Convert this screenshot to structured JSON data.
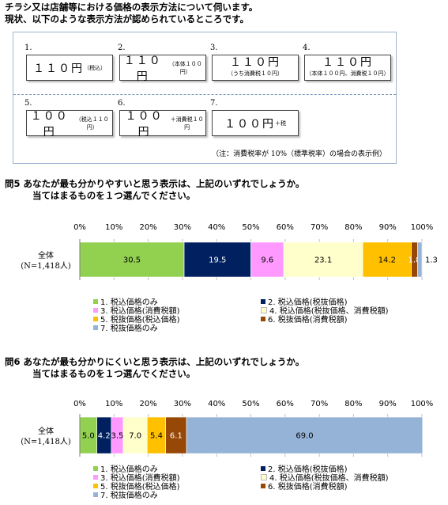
{
  "intro": {
    "line1": "チラシ又は店舗等における価格の表示方法について伺います。",
    "line2": "現状、以下のような表示方法が認められているところです。"
  },
  "options": [
    {
      "num": "1.",
      "price": "１１０円",
      "small": "（税込）"
    },
    {
      "num": "2.",
      "price": "１１０円",
      "small": "（本体１００円）"
    },
    {
      "num": "3.",
      "price": "１１０円",
      "small": "（うち消費税１０円）"
    },
    {
      "num": "4.",
      "price": "１１０円",
      "small": "（本体１００円、消費税１０円）"
    },
    {
      "num": "5.",
      "price": "１００円",
      "small": "（税込１１０円）"
    },
    {
      "num": "6.",
      "price": "１００円",
      "small": "＋消費税１０円"
    },
    {
      "num": "7.",
      "price": "１００円",
      "small": "＋税"
    }
  ],
  "note": "（注：消費税率が 10%（標準税率）の場合の表示例）",
  "questions": [
    {
      "title1": "問5 あなたが最も分かりやすいと思う表示は、上記のいずれでしょうか。",
      "title2": "当てはまるものを１つ選んでください。"
    },
    {
      "title1": "問6 あなたが最も分かりにくいと思う表示は、上記のいずれでしょうか。",
      "title2": "当てはまるものを１つ選んでください。"
    }
  ],
  "chart_data": [
    {
      "type": "bar",
      "orientation": "horizontal-stacked",
      "category": "全体",
      "category_sub": "(N=1,418人)",
      "xlim": [
        0,
        100
      ],
      "ticks": [
        "0%",
        "10%",
        "20%",
        "30%",
        "40%",
        "50%",
        "60%",
        "70%",
        "80%",
        "90%",
        "100%"
      ],
      "legend_placement": "bottom",
      "series": [
        {
          "name": "1. 税込価格のみ",
          "value": 30.5,
          "label": "30.5",
          "color": "#92d050",
          "text_color": "#000000"
        },
        {
          "name": "2. 税込価格(税抜価格)",
          "value": 19.5,
          "label": "19.5",
          "color": "#002060",
          "text_color": "#ffffff"
        },
        {
          "name": "3. 税込価格(消費税額)",
          "value": 9.6,
          "label": "9.6",
          "color": "#ff99ff",
          "text_color": "#000000"
        },
        {
          "name": "4. 税込価格(税抜価格、消費税額)",
          "value": 23.1,
          "label": "23.1",
          "color": "#ffffcc",
          "text_color": "#000000"
        },
        {
          "name": "5. 税抜価格(税込価格)",
          "value": 14.2,
          "label": "14.2",
          "color": "#ffc000",
          "text_color": "#000000"
        },
        {
          "name": "6. 税抜価格(消費税額)",
          "value": 1.8,
          "label": "1.8",
          "color": "#974706",
          "text_color": "#ffffff"
        },
        {
          "name": "7. 税抜価格のみ",
          "value": 1.3,
          "label": "1.3",
          "color": "#95b3d7",
          "text_color": "#000000"
        }
      ]
    },
    {
      "type": "bar",
      "orientation": "horizontal-stacked",
      "category": "全体",
      "category_sub": "(N=1,418人)",
      "xlim": [
        0,
        100
      ],
      "ticks": [
        "0%",
        "10%",
        "20%",
        "30%",
        "40%",
        "50%",
        "60%",
        "70%",
        "80%",
        "90%",
        "100%"
      ],
      "legend_placement": "bottom",
      "series": [
        {
          "name": "1. 税込価格のみ",
          "value": 5.0,
          "label": "5.0",
          "color": "#92d050",
          "text_color": "#000000"
        },
        {
          "name": "2. 税込価格(税抜価格)",
          "value": 4.2,
          "label": "4.2",
          "color": "#002060",
          "text_color": "#ffffff"
        },
        {
          "name": "3. 税込価格(消費税額)",
          "value": 3.5,
          "label": "3.5",
          "color": "#ff99ff",
          "text_color": "#000000"
        },
        {
          "name": "4. 税込価格(税抜価格、消費税額)",
          "value": 7.0,
          "label": "7.0",
          "color": "#ffffcc",
          "text_color": "#000000"
        },
        {
          "name": "5. 税抜価格(税込価格)",
          "value": 5.4,
          "label": "5.4",
          "color": "#ffc000",
          "text_color": "#000000"
        },
        {
          "name": "6. 税抜価格(消費税額)",
          "value": 6.1,
          "label": "6.1",
          "color": "#974706",
          "text_color": "#ffffff"
        },
        {
          "name": "7. 税抜価格のみ",
          "value": 69.0,
          "label": "69.0",
          "color": "#95b3d7",
          "text_color": "#000000"
        }
      ]
    }
  ]
}
